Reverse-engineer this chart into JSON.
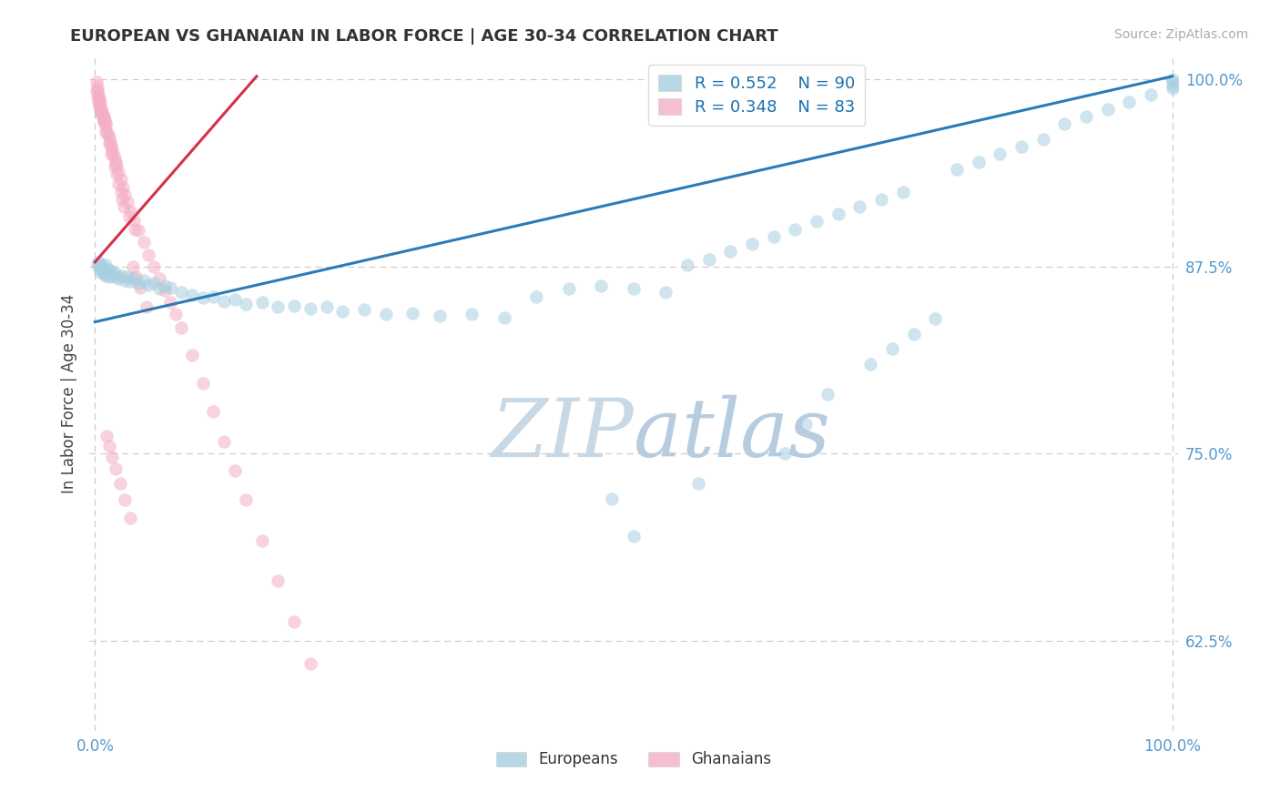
{
  "title": "EUROPEAN VS GHANAIAN IN LABOR FORCE | AGE 30-34 CORRELATION CHART",
  "source_text": "Source: ZipAtlas.com",
  "ylabel": "In Labor Force | Age 30-34",
  "xlim": [
    -0.005,
    1.005
  ],
  "ylim": [
    0.565,
    1.015
  ],
  "yticks": [
    0.625,
    0.75,
    0.875,
    1.0
  ],
  "ytick_labels": [
    "62.5%",
    "75.0%",
    "87.5%",
    "100.0%"
  ],
  "xtick_labels": [
    "0.0%",
    "100.0%"
  ],
  "legend_eu_r": "R = 0.552",
  "legend_eu_n": "N = 90",
  "legend_gh_r": "R = 0.348",
  "legend_gh_n": "N = 83",
  "european_color": "#a8cfe0",
  "ghanaian_color": "#f4afc4",
  "european_line_color": "#2c7bb6",
  "ghanaian_line_color": "#d6304a",
  "watermark_color": "#d0dfe8",
  "grid_color": "#cccccc",
  "title_color": "#333333",
  "tick_color": "#5599cc",
  "source_color": "#aaaaaa",
  "eu_scatter_alpha": 0.55,
  "gh_scatter_alpha": 0.55,
  "marker_size": 110,
  "eu_line_start_y": 0.838,
  "eu_line_end_y": 1.002,
  "gh_line_start_y": 0.978,
  "gh_line_end_y": 1.002,
  "eu_x": [
    0.002,
    0.003,
    0.004,
    0.005,
    0.005,
    0.006,
    0.007,
    0.008,
    0.009,
    0.01,
    0.01,
    0.011,
    0.012,
    0.013,
    0.015,
    0.016,
    0.018,
    0.02,
    0.022,
    0.025,
    0.028,
    0.03,
    0.033,
    0.036,
    0.04,
    0.045,
    0.05,
    0.055,
    0.06,
    0.065,
    0.07,
    0.08,
    0.09,
    0.1,
    0.11,
    0.12,
    0.13,
    0.14,
    0.155,
    0.17,
    0.185,
    0.2,
    0.215,
    0.23,
    0.25,
    0.27,
    0.295,
    0.32,
    0.35,
    0.38,
    0.41,
    0.44,
    0.47,
    0.5,
    0.53,
    0.55,
    0.57,
    0.59,
    0.61,
    0.63,
    0.65,
    0.67,
    0.69,
    0.71,
    0.73,
    0.75,
    0.8,
    0.82,
    0.84,
    0.86,
    0.88,
    0.9,
    0.92,
    0.94,
    0.96,
    0.98,
    1.0,
    1.0,
    1.0,
    1.0,
    0.5,
    0.48,
    0.64,
    0.66,
    0.68,
    0.72,
    0.74,
    0.76,
    0.78,
    0.56
  ],
  "eu_y": [
    0.877,
    0.875,
    0.878,
    0.873,
    0.871,
    0.876,
    0.872,
    0.874,
    0.87,
    0.869,
    0.876,
    0.871,
    0.873,
    0.868,
    0.872,
    0.869,
    0.871,
    0.868,
    0.867,
    0.869,
    0.866,
    0.868,
    0.865,
    0.867,
    0.864,
    0.866,
    0.863,
    0.864,
    0.86,
    0.862,
    0.861,
    0.858,
    0.856,
    0.854,
    0.855,
    0.852,
    0.853,
    0.85,
    0.851,
    0.848,
    0.849,
    0.847,
    0.848,
    0.845,
    0.846,
    0.843,
    0.844,
    0.842,
    0.843,
    0.841,
    0.855,
    0.86,
    0.862,
    0.86,
    0.858,
    0.876,
    0.88,
    0.885,
    0.89,
    0.895,
    0.9,
    0.905,
    0.91,
    0.915,
    0.92,
    0.925,
    0.94,
    0.945,
    0.95,
    0.955,
    0.96,
    0.97,
    0.975,
    0.98,
    0.985,
    0.99,
    1.0,
    0.998,
    0.996,
    0.994,
    0.695,
    0.72,
    0.75,
    0.77,
    0.79,
    0.81,
    0.82,
    0.83,
    0.84,
    0.73
  ],
  "gh_x": [
    0.001,
    0.002,
    0.002,
    0.003,
    0.003,
    0.004,
    0.004,
    0.005,
    0.005,
    0.005,
    0.006,
    0.006,
    0.007,
    0.007,
    0.008,
    0.008,
    0.009,
    0.009,
    0.01,
    0.01,
    0.011,
    0.012,
    0.013,
    0.014,
    0.015,
    0.016,
    0.017,
    0.018,
    0.019,
    0.02,
    0.022,
    0.024,
    0.026,
    0.028,
    0.03,
    0.033,
    0.036,
    0.04,
    0.045,
    0.05,
    0.055,
    0.06,
    0.065,
    0.07,
    0.075,
    0.08,
    0.09,
    0.1,
    0.11,
    0.12,
    0.13,
    0.14,
    0.155,
    0.17,
    0.185,
    0.2,
    0.035,
    0.038,
    0.042,
    0.048,
    0.025,
    0.027,
    0.032,
    0.037,
    0.022,
    0.024,
    0.018,
    0.02,
    0.015,
    0.013,
    0.01,
    0.008,
    0.006,
    0.004,
    0.002,
    0.001,
    0.011,
    0.013,
    0.016,
    0.019,
    0.023,
    0.028,
    0.033
  ],
  "gh_y": [
    0.992,
    0.995,
    0.988,
    0.99,
    0.985,
    0.987,
    0.982,
    0.984,
    0.979,
    0.981,
    0.977,
    0.979,
    0.975,
    0.977,
    0.973,
    0.975,
    0.971,
    0.973,
    0.969,
    0.971,
    0.965,
    0.963,
    0.961,
    0.958,
    0.956,
    0.953,
    0.95,
    0.948,
    0.945,
    0.943,
    0.938,
    0.933,
    0.928,
    0.923,
    0.918,
    0.912,
    0.906,
    0.899,
    0.891,
    0.883,
    0.875,
    0.867,
    0.859,
    0.851,
    0.843,
    0.834,
    0.816,
    0.797,
    0.778,
    0.758,
    0.739,
    0.719,
    0.692,
    0.665,
    0.638,
    0.61,
    0.875,
    0.868,
    0.861,
    0.848,
    0.92,
    0.915,
    0.908,
    0.9,
    0.93,
    0.925,
    0.942,
    0.937,
    0.95,
    0.957,
    0.965,
    0.972,
    0.98,
    0.987,
    0.993,
    0.998,
    0.762,
    0.755,
    0.748,
    0.74,
    0.73,
    0.719,
    0.707
  ]
}
